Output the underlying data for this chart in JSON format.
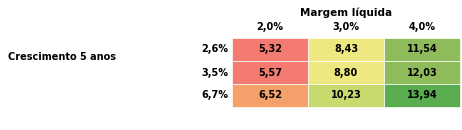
{
  "title_col": "Margem líquida",
  "title_row": "Crescimento 5 anos",
  "col_labels": [
    "2,0%",
    "3,0%",
    "4,0%"
  ],
  "row_labels": [
    "2,6%",
    "3,5%",
    "6,7%"
  ],
  "values": [
    [
      "5,32",
      "8,43",
      "11,54"
    ],
    [
      "5,57",
      "8,80",
      "12,03"
    ],
    [
      "6,52",
      "10,23",
      "13,94"
    ]
  ],
  "cell_colors": [
    [
      "#f47b72",
      "#ede980",
      "#8fbc5a"
    ],
    [
      "#f47b72",
      "#ede980",
      "#8fbc5a"
    ],
    [
      "#f4a06b",
      "#c8d96e",
      "#5aad4e"
    ]
  ],
  "bg_color": "#ffffff",
  "text_color": "#000000",
  "font_size": 7,
  "title_font_size": 7.5
}
